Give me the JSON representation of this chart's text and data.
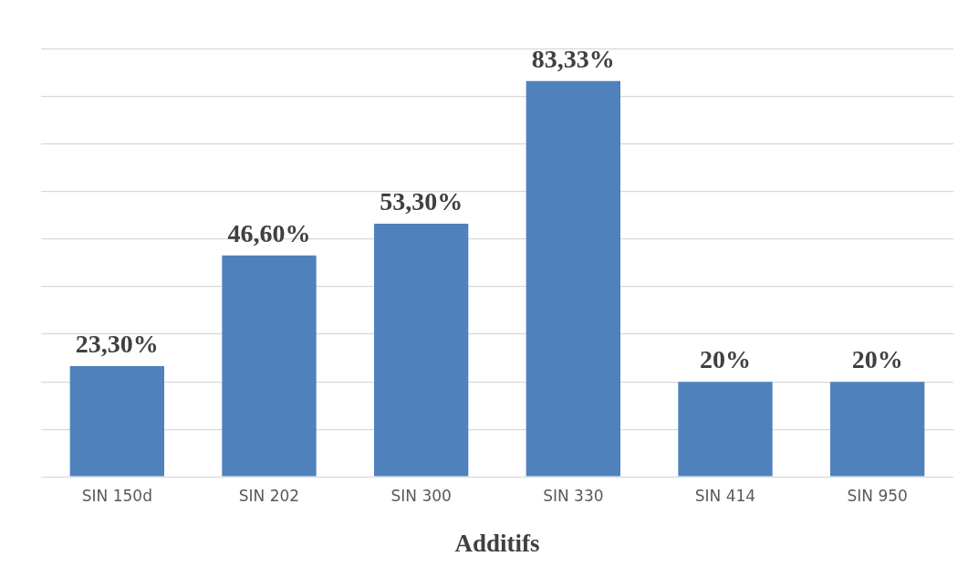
{
  "chart_data": {
    "type": "bar",
    "xlabel": "Additifs",
    "categories": [
      "SIN 150d",
      "SIN 202",
      "SIN 300",
      "SIN 330",
      "SIN 414",
      "SIN 950"
    ],
    "values": [
      23.3,
      46.6,
      53.3,
      83.33,
      20,
      20
    ],
    "value_labels": [
      "23,30%",
      "46,60%",
      "53,30%",
      "83,33%",
      "20%",
      "20%"
    ],
    "color": "#4f81bd",
    "ylim": [
      0,
      90
    ],
    "yticks": [
      {
        "value": 0,
        "label": null
      },
      {
        "value": 10,
        "label": null
      },
      {
        "value": 20,
        "label": null
      },
      {
        "value": 30,
        "label": null
      },
      {
        "value": 40,
        "label": null
      },
      {
        "value": 50,
        "label": null
      },
      {
        "value": 60,
        "label": null
      },
      {
        "value": 70,
        "label": null
      },
      {
        "value": 80,
        "label": null
      },
      {
        "value": 90,
        "label": null
      }
    ],
    "grid": "y",
    "tick_labels": "x",
    "legend": false
  }
}
